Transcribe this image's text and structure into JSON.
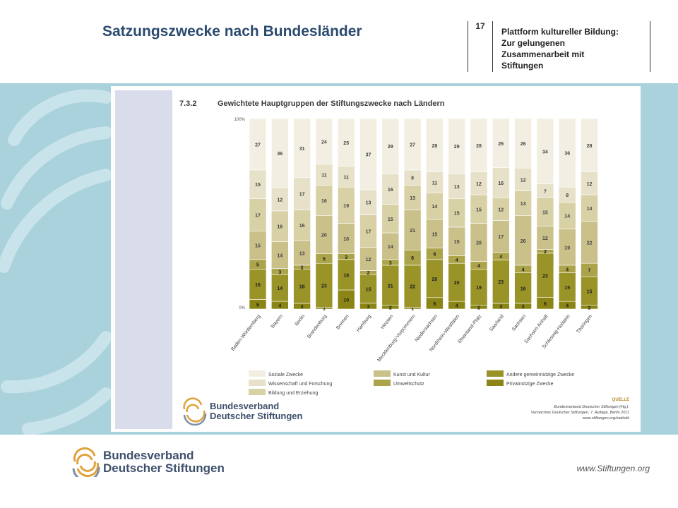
{
  "slide": {
    "title": "Satzungszwecke nach Bundesländer",
    "page_number": "17",
    "platform_lines": [
      "Plattform kultureller Bildung:",
      "Zur gelungenen",
      "Zusammenarbeit mit",
      "Stiftungen"
    ],
    "footer_url": "www.Stiftungen.org",
    "footer_logo_lines": [
      "Bundesverband",
      "Deutscher Stiftungen"
    ]
  },
  "chart_data": {
    "type": "bar",
    "stacked": true,
    "number": "7.3.2",
    "title": "Gewichtete Hauptgruppen der Stiftungszwecke nach Ländern",
    "ytick_labels": [
      "100%",
      "0%"
    ],
    "ylim": [
      0,
      100
    ],
    "categories": [
      "Baden-Württemberg",
      "Bayern",
      "Berlin",
      "Brandenburg",
      "Bremen",
      "Hamburg",
      "Hessen",
      "Mecklenburg-Vorpommern",
      "Niedersachsen",
      "Nordrhein-Westfalen",
      "Rheinland-Pfalz",
      "Saarland",
      "Sachsen",
      "Sachsen-Anhalt",
      "Schleswig-Holstein",
      "Thüringen"
    ],
    "series": [
      {
        "name": "Privatnützige Zwecke",
        "color": "#8a8514",
        "values": [
          5,
          4,
          3,
          1,
          10,
          3,
          2,
          1,
          6,
          4,
          2,
          3,
          3,
          6,
          4,
          2
        ]
      },
      {
        "name": "Andere gemeinnützige Zwecke",
        "color": "#9a9428",
        "values": [
          16,
          14,
          18,
          23,
          16,
          15,
          21,
          22,
          20,
          20,
          19,
          23,
          16,
          23,
          15,
          15
        ]
      },
      {
        "name": "Umweltschutz",
        "color": "#aca44a",
        "values": [
          5,
          3,
          2,
          5,
          3,
          2,
          3,
          8,
          6,
          4,
          4,
          4,
          4,
          2,
          4,
          7
        ]
      },
      {
        "name": "Kunst und Kultur",
        "color": "#c9c08a",
        "values": [
          15,
          14,
          13,
          20,
          16,
          12,
          14,
          21,
          15,
          15,
          20,
          17,
          26,
          12,
          19,
          22
        ]
      },
      {
        "name": "Bildung und Erziehung",
        "color": "#d8d1a6",
        "values": [
          17,
          16,
          16,
          16,
          19,
          17,
          15,
          13,
          14,
          15,
          15,
          12,
          13,
          15,
          14,
          14
        ]
      },
      {
        "name": "Wissenschaft und Forschung",
        "color": "#e6e1c8",
        "values": [
          15,
          12,
          17,
          11,
          11,
          13,
          16,
          8,
          11,
          13,
          12,
          16,
          12,
          7,
          8,
          12
        ]
      },
      {
        "name": "Soziale Zwecke",
        "color": "#f2efe2",
        "values": [
          27,
          36,
          31,
          24,
          25,
          37,
          29,
          27,
          28,
          29,
          28,
          26,
          26,
          34,
          36,
          28
        ]
      }
    ],
    "legend_columns": [
      [
        "Soziale Zwecke",
        "Wissenschaft und Forschung",
        "Bildung und Erziehung"
      ],
      [
        "Kunst und Kultur",
        "Umweltschutz"
      ],
      [
        "Andere gemeinnützige Zwecke",
        "Privatnützige Zwecke"
      ]
    ],
    "source": {
      "label": "QUELLE",
      "lines": [
        "Bundesverband Deutscher Stiftungen (Hg.):",
        "Verzeichnis Deutscher Stiftungen, 7. Auflage, Berlin 2011",
        "www.stiftungen.org/statistik"
      ]
    },
    "logo_lines": [
      "Bundesverband",
      "Deutscher Stiftungen"
    ]
  }
}
